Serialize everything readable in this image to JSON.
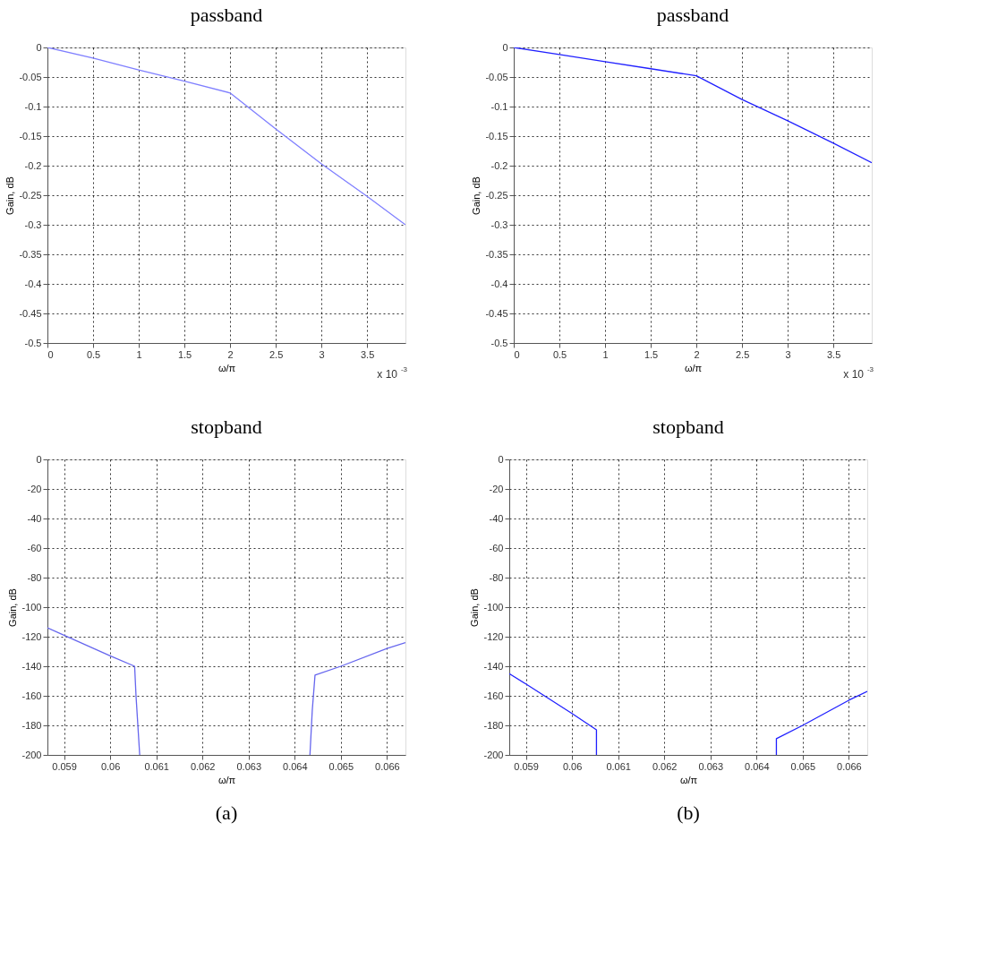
{
  "chart_data": [
    {
      "type": "line",
      "title": "passband",
      "xlabel": "ω/π",
      "ylabel": "Gain, dB",
      "annotations": [
        "x 10$^{-3}$"
      ],
      "grid": true,
      "xlim": [
        0,
        3.92
      ],
      "xticks": [
        0,
        0.5,
        1,
        1.5,
        2,
        2.5,
        3,
        3.5
      ],
      "ylim": [
        -0.5,
        0
      ],
      "yticks": [
        -0.5,
        -0.45,
        -0.4,
        -0.35,
        -0.3,
        -0.25,
        -0.2,
        -0.15,
        -0.1,
        -0.05,
        0
      ],
      "series": [
        {
          "color": "#7f7fff",
          "x": [
            0,
            0.5,
            1,
            1.5,
            2,
            2.5,
            3,
            3.5,
            3.92
          ],
          "values": [
            0,
            -0.018,
            -0.038,
            -0.057,
            -0.077,
            -0.138,
            -0.197,
            -0.252,
            -0.3
          ]
        }
      ]
    },
    {
      "type": "line",
      "title": "passband",
      "xlabel": "ω/π",
      "ylabel": "Gain, dB",
      "annotations": [
        "x 10$^{-3}$"
      ],
      "grid": true,
      "xlim": [
        0,
        3.92
      ],
      "xticks": [
        0,
        0.5,
        1,
        1.5,
        2,
        2.5,
        3,
        3.5
      ],
      "ylim": [
        -0.5,
        0
      ],
      "yticks": [
        -0.5,
        -0.45,
        -0.4,
        -0.35,
        -0.3,
        -0.25,
        -0.2,
        -0.15,
        -0.1,
        -0.05,
        0
      ],
      "series": [
        {
          "color": "#2020ff",
          "x": [
            0,
            0.5,
            1,
            1.5,
            2,
            2.5,
            3,
            3.5,
            3.92
          ],
          "values": [
            0,
            -0.012,
            -0.024,
            -0.036,
            -0.048,
            -0.088,
            -0.124,
            -0.162,
            -0.195
          ]
        }
      ]
    },
    {
      "type": "line",
      "title": "stopband",
      "xlabel": "ω/π",
      "ylabel": "Gain, dB",
      "annotations": [
        "(a)"
      ],
      "grid": true,
      "xlim": [
        0.05864,
        0.0664
      ],
      "xticks": [
        0.059,
        0.06,
        0.061,
        0.062,
        0.063,
        0.064,
        0.065,
        0.066
      ],
      "ylim": [
        -200,
        0
      ],
      "yticks": [
        -200,
        -180,
        -160,
        -140,
        -120,
        -100,
        -80,
        -60,
        -40,
        -20,
        0
      ],
      "series": [
        {
          "color": "#6666ee",
          "x": [
            0.05864,
            0.059,
            0.06,
            0.06053,
            0.06056,
            0.0606,
            0.06064
          ],
          "values": [
            -114,
            -119,
            -133,
            -140,
            -160,
            -180,
            -200
          ]
        },
        {
          "color": "#6666ee",
          "x": [
            0.06433,
            0.06438,
            0.06444,
            0.065,
            0.066,
            0.0664
          ],
          "values": [
            -200,
            -170,
            -146,
            -140,
            -128,
            -124
          ]
        }
      ]
    },
    {
      "type": "line",
      "title": "stopband",
      "xlabel": "ω/π",
      "ylabel": "Gain, dB",
      "annotations": [
        "(b)"
      ],
      "grid": true,
      "xlim": [
        0.05864,
        0.0664
      ],
      "xticks": [
        0.059,
        0.06,
        0.061,
        0.062,
        0.063,
        0.064,
        0.065,
        0.066
      ],
      "ylim": [
        -200,
        0
      ],
      "yticks": [
        -200,
        -180,
        -160,
        -140,
        -120,
        -100,
        -80,
        -60,
        -40,
        -20,
        0
      ],
      "series": [
        {
          "color": "#2020ff",
          "x": [
            0.05864,
            0.059,
            0.06,
            0.06053,
            0.06053
          ],
          "values": [
            -145,
            -152,
            -172,
            -183,
            -200
          ]
        },
        {
          "color": "#2020ff",
          "x": [
            0.06443,
            0.06443,
            0.065,
            0.066,
            0.0664
          ],
          "values": [
            -200,
            -189,
            -180,
            -163,
            -157
          ]
        }
      ]
    }
  ]
}
